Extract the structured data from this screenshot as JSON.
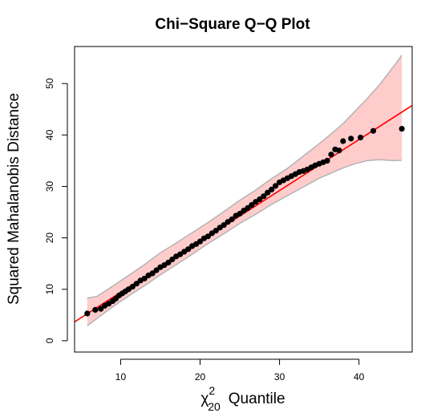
{
  "chart_data": {
    "type": "scatter",
    "title": "Chi−Square Q−Q Plot",
    "xlabel_symbol": "χ",
    "xlabel_superscript": "2",
    "xlabel_subscript": "20",
    "xlabel_text": "Quantile",
    "ylabel": "Squared Mahalanobis Distance",
    "xlim": [
      4.2,
      46.7
    ],
    "ylim": [
      -2.2,
      57.2
    ],
    "xticks": [
      10,
      20,
      30,
      40
    ],
    "xtick_labels": [
      "10",
      "20",
      "30",
      "40"
    ],
    "yticks": [
      0,
      10,
      20,
      30,
      40,
      50
    ],
    "ytick_labels": [
      "0",
      "10",
      "20",
      "30",
      "40",
      "50"
    ],
    "reference_line": {
      "intercept": -0.5,
      "slope": 0.99,
      "color": "#ff0000"
    },
    "confidence_band": {
      "x": [
        5.8,
        7,
        9,
        11,
        13,
        15,
        17,
        19,
        21,
        23,
        25,
        27,
        29,
        31,
        33,
        35,
        36.5,
        38,
        39.5,
        41,
        42.5,
        43.5,
        44.5,
        45.4
      ],
      "lower": [
        2.9,
        4.3,
        6.6,
        8.7,
        10.7,
        12.8,
        14.8,
        16.8,
        18.9,
        20.8,
        22.8,
        24.6,
        26.5,
        28.2,
        29.9,
        31.6,
        32.6,
        33.6,
        34.4,
        35.0,
        35.2,
        35.1,
        35.0,
        35.1
      ],
      "upper": [
        8.3,
        8.6,
        10.6,
        12.7,
        14.8,
        17.1,
        19.0,
        21.0,
        23.0,
        25.1,
        27.3,
        29.3,
        31.5,
        33.5,
        35.9,
        38.3,
        40.2,
        42.2,
        44.6,
        47.0,
        49.6,
        51.6,
        53.6,
        55.5
      ],
      "fill": "#ffcccc",
      "stroke": "#b3b3b3"
    },
    "point_color": "#000000",
    "points": [
      [
        5.8,
        5.3
      ],
      [
        6.8,
        6.0
      ],
      [
        7.5,
        6.2
      ],
      [
        8.0,
        6.8
      ],
      [
        8.5,
        7.2
      ],
      [
        9.0,
        7.7
      ],
      [
        9.4,
        8.2
      ],
      [
        9.8,
        8.8
      ],
      [
        10.2,
        9.2
      ],
      [
        10.6,
        9.6
      ],
      [
        11.0,
        10.0
      ],
      [
        11.5,
        10.5
      ],
      [
        12.0,
        11.1
      ],
      [
        12.5,
        11.7
      ],
      [
        13.0,
        12.1
      ],
      [
        13.5,
        12.7
      ],
      [
        14.0,
        13.1
      ],
      [
        14.5,
        13.7
      ],
      [
        15.0,
        14.3
      ],
      [
        15.5,
        14.7
      ],
      [
        16.0,
        15.2
      ],
      [
        16.5,
        15.8
      ],
      [
        17.0,
        16.4
      ],
      [
        17.5,
        16.8
      ],
      [
        18.0,
        17.3
      ],
      [
        18.5,
        17.8
      ],
      [
        19.0,
        18.4
      ],
      [
        19.5,
        18.8
      ],
      [
        20.0,
        19.3
      ],
      [
        20.5,
        19.9
      ],
      [
        21.0,
        20.3
      ],
      [
        21.5,
        20.9
      ],
      [
        22.0,
        21.4
      ],
      [
        22.5,
        22.0
      ],
      [
        23.0,
        22.5
      ],
      [
        23.5,
        23.1
      ],
      [
        24.0,
        23.6
      ],
      [
        24.5,
        24.3
      ],
      [
        25.0,
        24.7
      ],
      [
        25.5,
        25.3
      ],
      [
        26.0,
        25.8
      ],
      [
        26.5,
        26.4
      ],
      [
        27.0,
        27.0
      ],
      [
        27.5,
        27.5
      ],
      [
        28.0,
        28.1
      ],
      [
        28.5,
        28.8
      ],
      [
        29.0,
        29.4
      ],
      [
        29.5,
        30.1
      ],
      [
        30.0,
        30.8
      ],
      [
        30.5,
        31.2
      ],
      [
        31.0,
        31.6
      ],
      [
        31.5,
        32.0
      ],
      [
        32.0,
        32.4
      ],
      [
        32.5,
        32.8
      ],
      [
        33.0,
        33.0
      ],
      [
        33.5,
        33.3
      ],
      [
        34.0,
        33.7
      ],
      [
        34.5,
        34.1
      ],
      [
        35.0,
        34.4
      ],
      [
        35.5,
        34.7
      ],
      [
        36.0,
        35.0
      ],
      [
        36.5,
        36.2
      ],
      [
        37.0,
        37.2
      ],
      [
        37.5,
        37.0
      ],
      [
        38.0,
        38.8
      ],
      [
        39.0,
        39.3
      ],
      [
        40.2,
        39.5
      ],
      [
        41.8,
        40.8
      ],
      [
        45.4,
        41.2
      ]
    ]
  }
}
